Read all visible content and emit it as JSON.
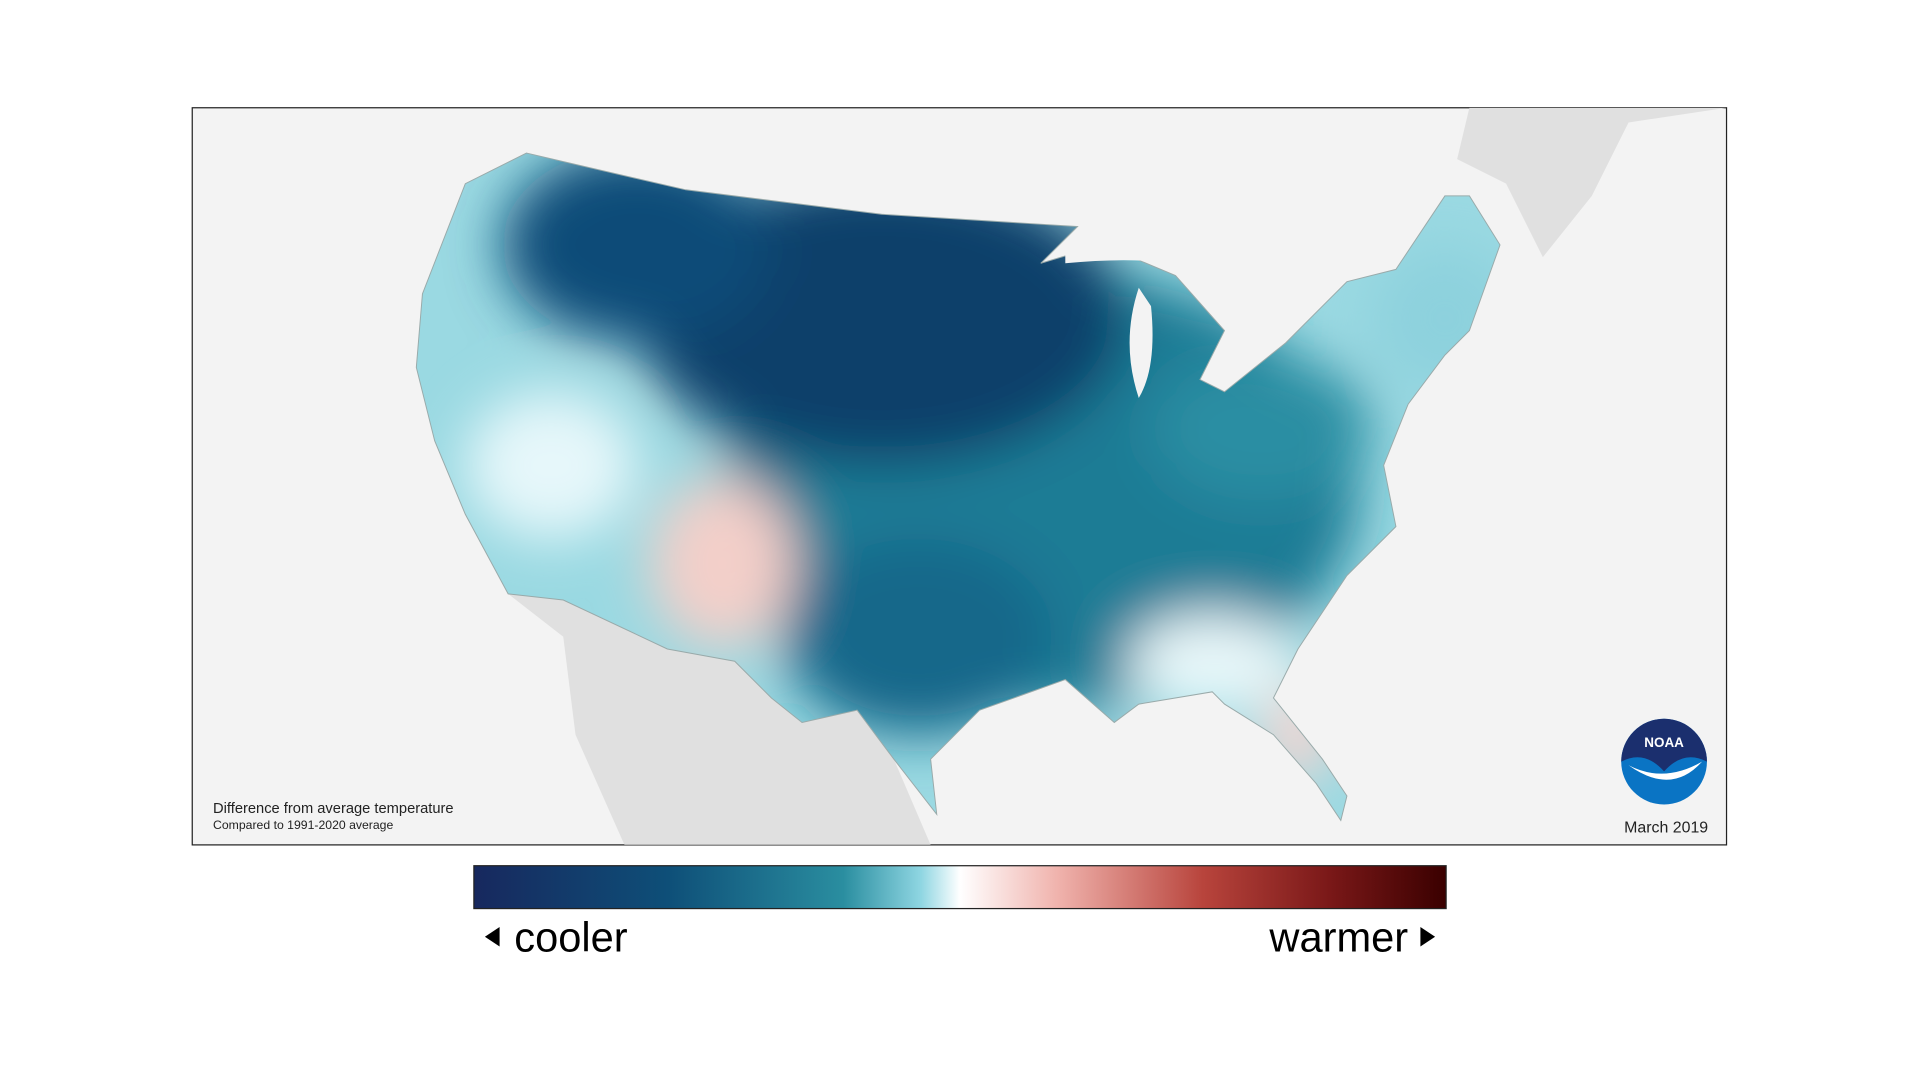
{
  "map": {
    "caption": "Difference from average temperature",
    "subcaption": "Compared to 1991-2020 average",
    "date": "March 2019",
    "logo": "NOAA"
  },
  "legend": {
    "low": "cooler",
    "high": "warmer"
  }
}
